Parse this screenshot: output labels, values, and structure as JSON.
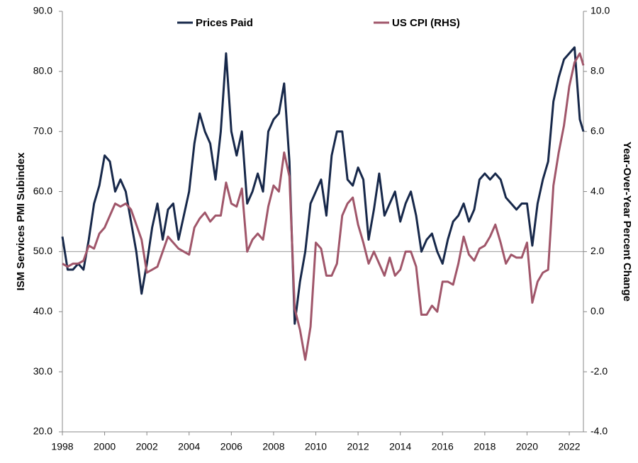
{
  "chart_data": {
    "type": "line",
    "x": [
      1998,
      1998.25,
      1998.5,
      1998.75,
      1999,
      1999.25,
      1999.5,
      1999.75,
      2000,
      2000.25,
      2000.5,
      2000.75,
      2001,
      2001.25,
      2001.5,
      2001.75,
      2002,
      2002.25,
      2002.5,
      2002.75,
      2003,
      2003.25,
      2003.5,
      2003.75,
      2004,
      2004.25,
      2004.5,
      2004.75,
      2005,
      2005.25,
      2005.5,
      2005.75,
      2006,
      2006.25,
      2006.5,
      2006.75,
      2007,
      2007.25,
      2007.5,
      2007.75,
      2008,
      2008.25,
      2008.5,
      2008.75,
      2009,
      2009.25,
      2009.5,
      2009.75,
      2010,
      2010.25,
      2010.5,
      2010.75,
      2011,
      2011.25,
      2011.5,
      2011.75,
      2012,
      2012.25,
      2012.5,
      2012.75,
      2013,
      2013.25,
      2013.5,
      2013.75,
      2014,
      2014.25,
      2014.5,
      2014.75,
      2015,
      2015.25,
      2015.5,
      2015.75,
      2016,
      2016.25,
      2016.5,
      2016.75,
      2017,
      2017.25,
      2017.5,
      2017.75,
      2018,
      2018.25,
      2018.5,
      2018.75,
      2019,
      2019.25,
      2019.5,
      2019.75,
      2020,
      2020.25,
      2020.5,
      2020.75,
      2021,
      2021.25,
      2021.5,
      2021.75,
      2022,
      2022.25,
      2022.5,
      2022.67
    ],
    "series": [
      {
        "name": "Prices Paid",
        "color": "#17284a",
        "values": [
          52.5,
          47,
          47,
          48,
          47,
          52,
          58,
          61,
          66,
          65,
          60,
          62,
          60,
          55,
          50,
          43,
          48,
          54,
          58,
          52,
          57,
          58,
          52,
          56,
          60,
          68,
          73,
          70,
          68,
          62,
          70,
          83,
          70,
          66,
          70,
          58,
          60,
          63,
          60,
          70,
          72,
          73,
          78,
          65,
          38,
          45,
          50,
          58,
          60,
          62,
          56,
          66,
          70,
          70,
          62,
          61,
          64,
          62,
          52,
          57,
          63,
          56,
          58,
          60,
          55,
          58,
          60,
          56,
          50,
          52,
          53,
          50,
          48,
          52,
          55,
          56,
          58,
          55,
          57,
          62,
          63,
          62,
          63,
          62,
          59,
          58,
          57,
          58,
          58,
          51,
          58,
          62,
          65,
          75,
          79,
          82,
          83,
          84,
          72,
          70
        ]
      },
      {
        "name": "US CPI (RHS)",
        "color": "#a0566a",
        "axis": "y2",
        "values": [
          1.6,
          1.5,
          1.6,
          1.6,
          1.7,
          2.2,
          2.1,
          2.6,
          2.8,
          3.2,
          3.6,
          3.5,
          3.6,
          3.4,
          2.9,
          2.4,
          1.3,
          1.4,
          1.5,
          2.0,
          2.5,
          2.3,
          2.1,
          2.0,
          1.9,
          2.8,
          3.1,
          3.3,
          3.0,
          3.2,
          3.2,
          4.3,
          3.6,
          3.5,
          4.1,
          2.0,
          2.4,
          2.6,
          2.4,
          3.5,
          4.2,
          4.0,
          5.3,
          4.5,
          0.1,
          -0.6,
          -1.6,
          -0.5,
          2.3,
          2.1,
          1.2,
          1.2,
          1.6,
          3.2,
          3.6,
          3.8,
          2.9,
          2.3,
          1.6,
          2.0,
          1.6,
          1.2,
          1.8,
          1.2,
          1.4,
          2.0,
          2.0,
          1.5,
          -0.1,
          -0.1,
          0.2,
          0.0,
          1.0,
          1.0,
          0.9,
          1.6,
          2.5,
          1.9,
          1.7,
          2.1,
          2.2,
          2.5,
          2.9,
          2.3,
          1.6,
          1.9,
          1.8,
          1.8,
          2.3,
          0.3,
          1.0,
          1.3,
          1.4,
          4.2,
          5.3,
          6.2,
          7.5,
          8.3,
          8.6,
          8.2
        ]
      }
    ],
    "y_label": "ISM Services PMI Subindex",
    "y2_label": "Year-Over-Year Percent Change",
    "xlim": [
      1998,
      2022.67
    ],
    "xticks": [
      1998,
      2000,
      2002,
      2004,
      2006,
      2008,
      2010,
      2012,
      2014,
      2016,
      2018,
      2020,
      2022
    ],
    "ylim": [
      20,
      90
    ],
    "yticks": [
      {
        "value": 20,
        "label": "20.0"
      },
      {
        "value": 30,
        "label": "30.0"
      },
      {
        "value": 40,
        "label": "40.0"
      },
      {
        "value": 50,
        "label": "50.0"
      },
      {
        "value": 60,
        "label": "60.0"
      },
      {
        "value": 70,
        "label": "70.0"
      },
      {
        "value": 80,
        "label": "80.0"
      },
      {
        "value": 90,
        "label": "90.0"
      }
    ],
    "y2lim": [
      -4,
      10
    ],
    "y2ticks": [
      {
        "value": -4,
        "label": "-4.0"
      },
      {
        "value": -2,
        "label": "-2.0"
      },
      {
        "value": 0,
        "label": "0.0"
      },
      {
        "value": 2,
        "label": "2.0"
      },
      {
        "value": 4,
        "label": "4.0"
      },
      {
        "value": 6,
        "label": "6.0"
      },
      {
        "value": 8,
        "label": "8.0"
      },
      {
        "value": 10,
        "label": "10.0"
      }
    ],
    "hline": 50,
    "legend": "top"
  }
}
